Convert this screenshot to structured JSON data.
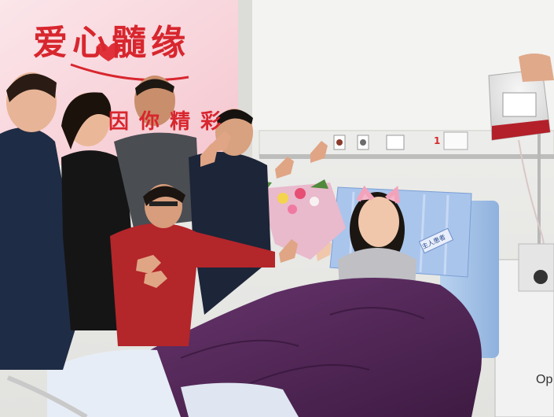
{
  "photo": {
    "banner": {
      "title": "爱心髓缘",
      "subtitle_partial": "因 你 精 彩"
    },
    "wall_panel": {
      "outlet_number": "1"
    },
    "bed_tag": "主人患者",
    "machine_logo_partial": "Op",
    "colors": {
      "banner_red": "#d8262e",
      "banner_bg": "#fbe3e6",
      "blanket_purple": "#5b2a5e",
      "bed_blue": "#a9c6ea",
      "blood_red": "#b3202a"
    }
  }
}
